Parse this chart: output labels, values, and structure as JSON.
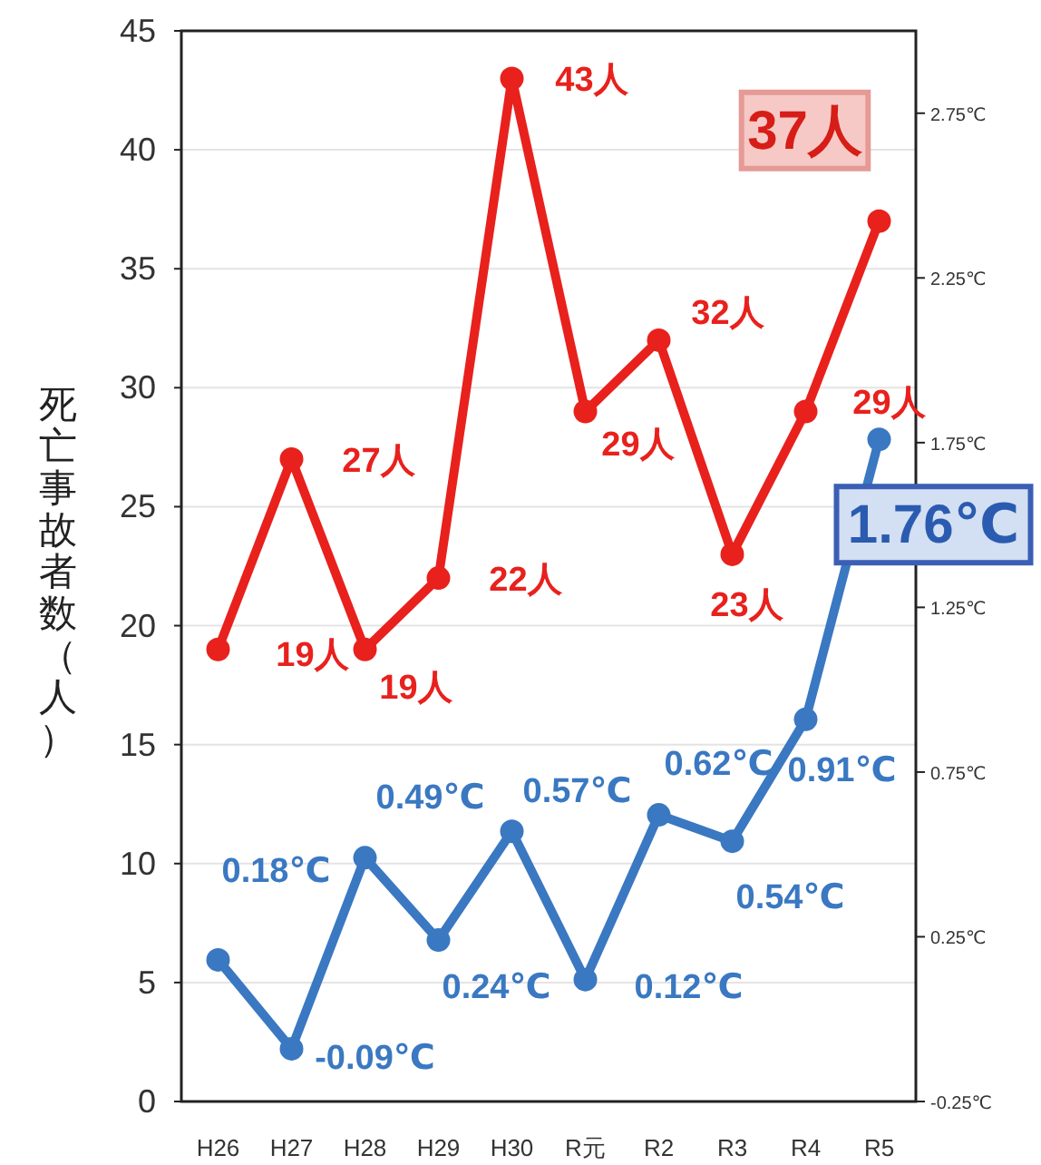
{
  "chart_data": {
    "type": "line",
    "ylabel": "死亡事故者数（人）",
    "categories": [
      "H26",
      "H27",
      "H28",
      "H29",
      "H30",
      "R元",
      "R2",
      "R3",
      "R4",
      "R5"
    ],
    "series": [
      {
        "color": "#e8211d",
        "values": [
          19,
          27,
          19,
          22,
          43,
          29,
          32,
          23,
          29,
          37
        ],
        "value_labels": [
          "19人",
          "27人",
          "19人",
          "22人",
          "43人",
          "29人",
          "32人",
          "23人",
          "29人",
          "37人"
        ]
      },
      {
        "color": "#3a78c2",
        "axis": "y2",
        "values": [
          0.18,
          -0.09,
          0.49,
          0.24,
          0.57,
          0.12,
          0.62,
          0.54,
          0.91,
          1.76
        ],
        "value_labels": [
          "0.18℃",
          "-0.09℃",
          "0.49℃",
          "0.24℃",
          "0.57℃",
          "0.12℃",
          "0.62℃",
          "0.54℃",
          "0.91℃",
          "1.76℃"
        ]
      }
    ],
    "ylim": [
      0,
      45
    ],
    "yticks": [
      0,
      5,
      10,
      15,
      20,
      25,
      30,
      35,
      40,
      45
    ],
    "y2lim": [
      -0.25,
      3.0
    ],
    "y2ticks": [
      {
        "value": -0.25,
        "label": "-0.25℃"
      },
      {
        "value": 0.25,
        "label": "0.25℃"
      },
      {
        "value": 0.75,
        "label": "0.75℃"
      },
      {
        "value": 1.25,
        "label": "1.25℃"
      },
      {
        "value": 1.75,
        "label": "1.75℃"
      },
      {
        "value": 2.25,
        "label": "2.25℃"
      },
      {
        "value": 2.75,
        "label": "2.75℃"
      }
    ],
    "grid": "y",
    "marker": "circle",
    "line_style": "solid"
  }
}
